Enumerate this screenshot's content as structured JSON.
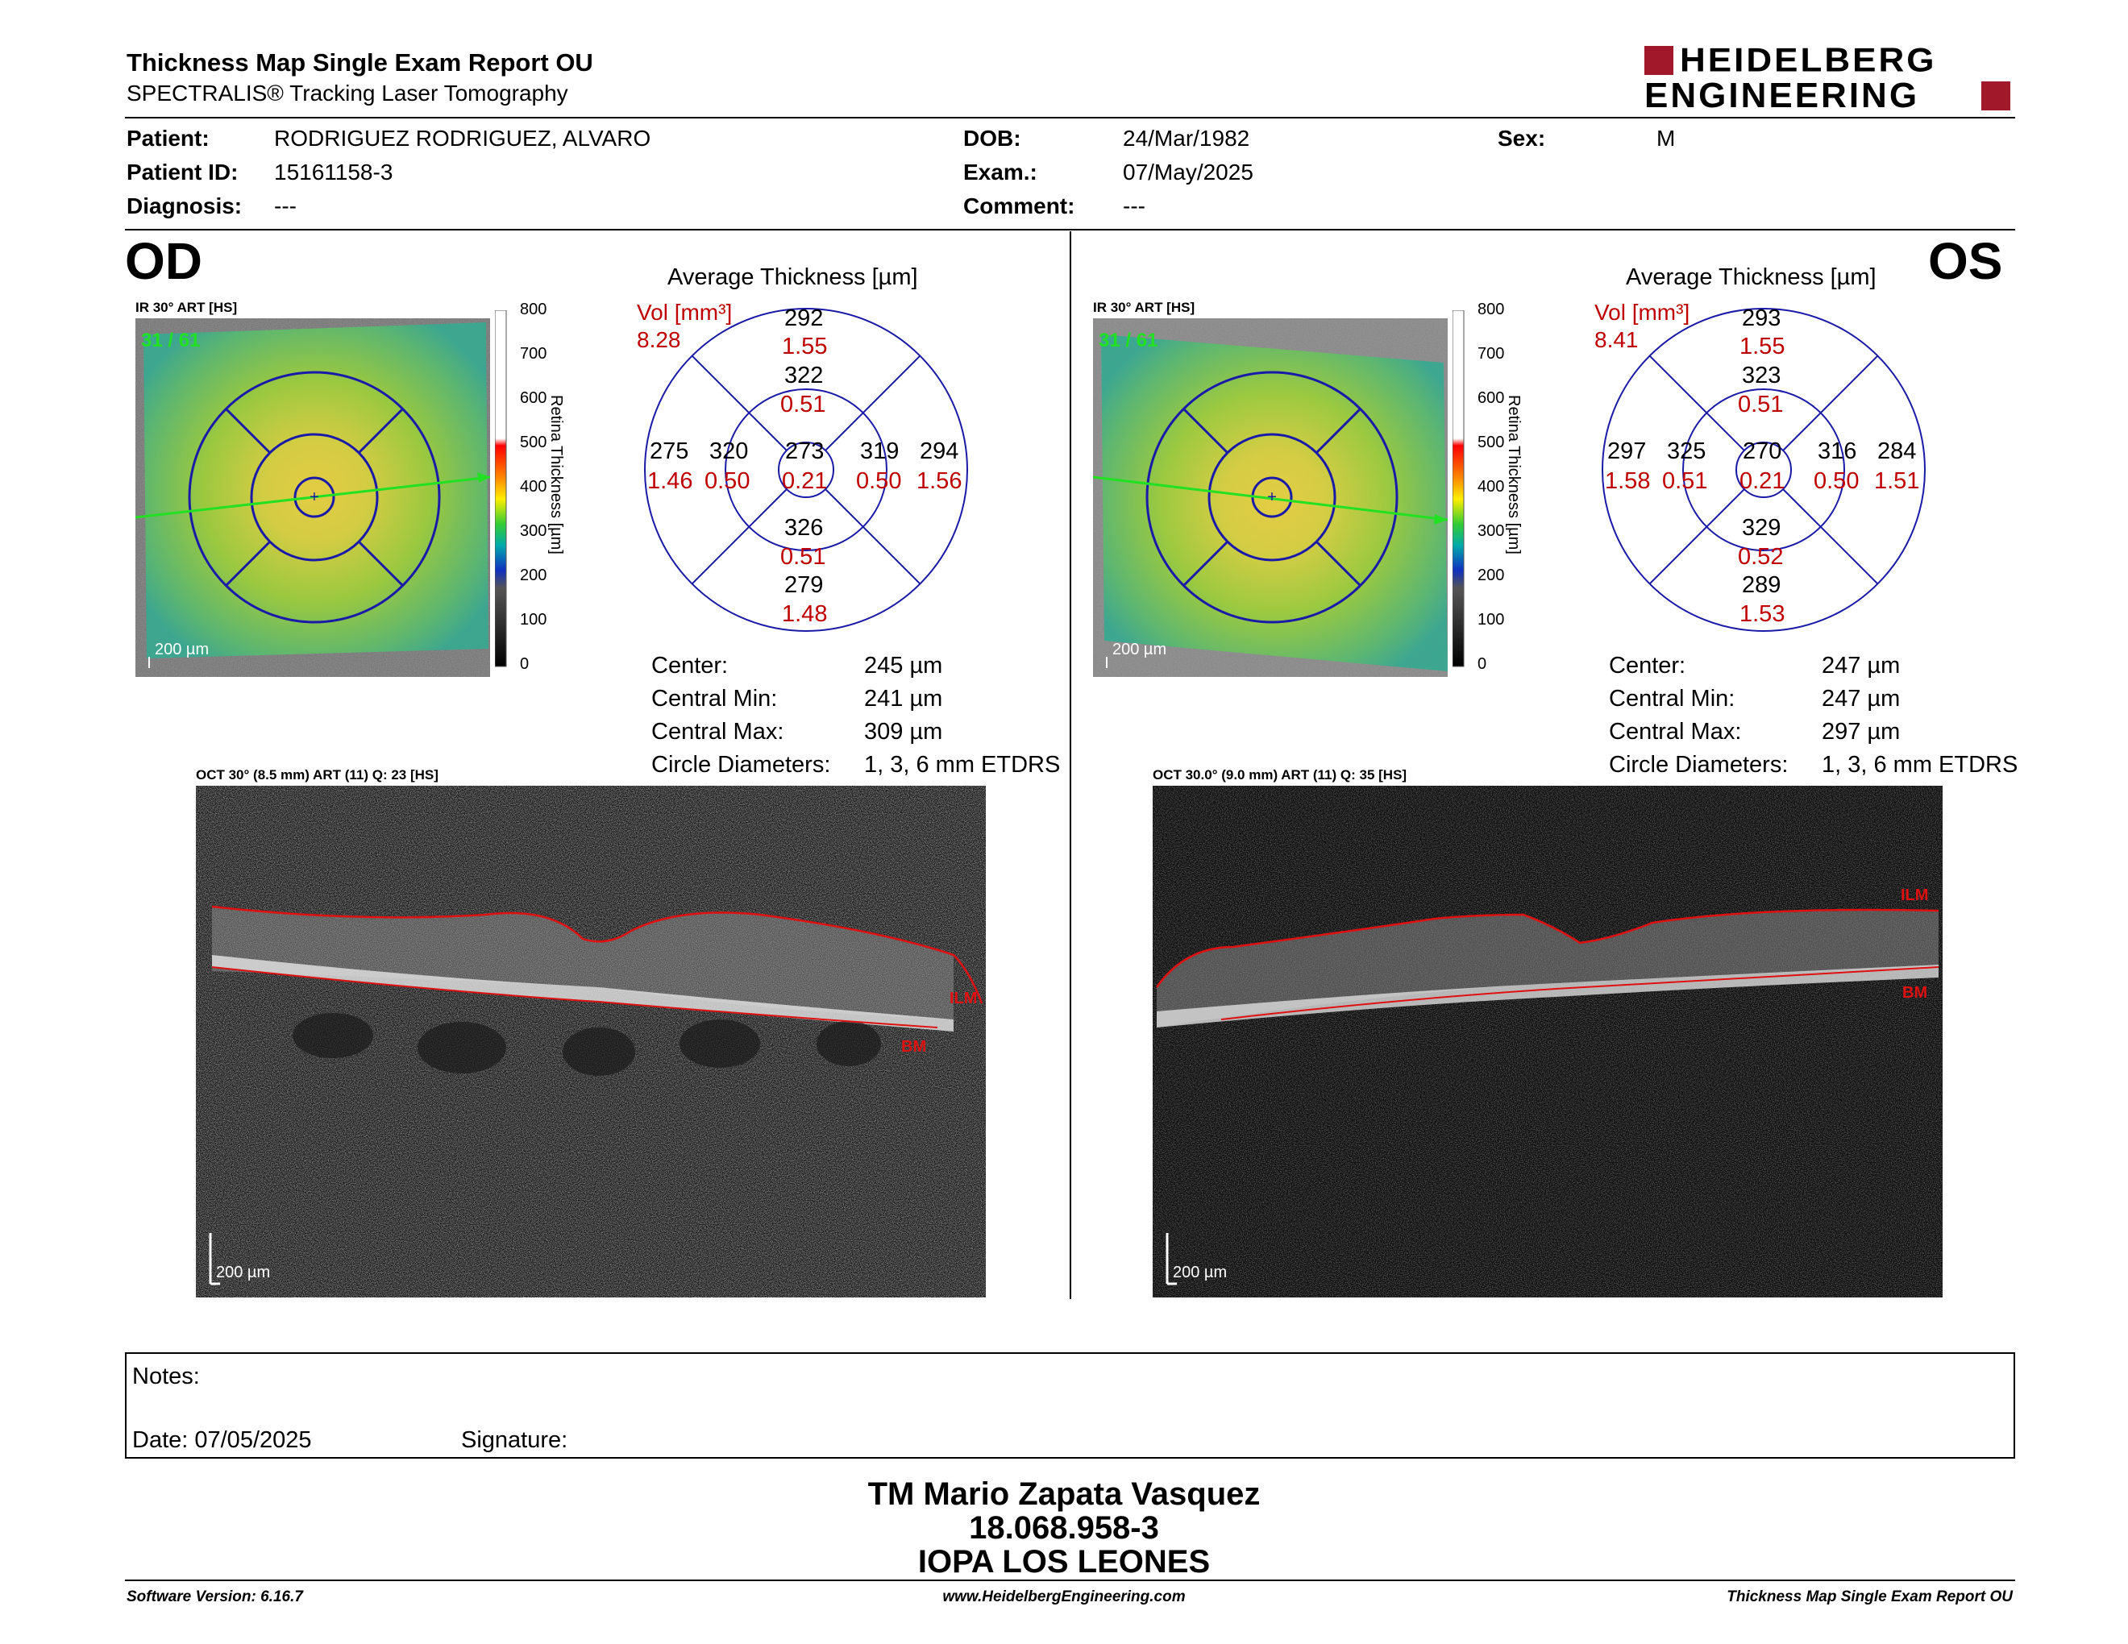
{
  "report": {
    "title": "Thickness Map Single Exam Report OU",
    "subtitle": "SPECTRALIS® Tracking Laser Tomography",
    "logo_line1": "HEIDELBERG",
    "logo_line2": "ENGINEERING"
  },
  "patient": {
    "patient_label": "Patient:",
    "patient_value": "RODRIGUEZ RODRIGUEZ, ALVARO",
    "dob_label": "DOB:",
    "dob_value": "24/Mar/1982",
    "sex_label": "Sex:",
    "sex_value": "M",
    "id_label": "Patient ID:",
    "id_value": "15161158-3",
    "exam_label": "Exam.:",
    "exam_value": "07/May/2025",
    "diag_label": "Diagnosis:",
    "diag_value": "---",
    "comment_label": "Comment:",
    "comment_value": "---"
  },
  "colorbar": {
    "title": "Retina Thickness [µm]",
    "ticks": [
      "800",
      "700",
      "600",
      "500",
      "400",
      "300",
      "200",
      "100",
      "0"
    ]
  },
  "od": {
    "eye": "OD",
    "ir_label": "IR 30° ART [HS]",
    "frame": "31 / 61",
    "scale": "200 µm",
    "grid_title": "Average Thickness [µm]",
    "vol_label": "Vol [mm³]",
    "vol_total": "8.28",
    "sectors": {
      "center": {
        "t": "273",
        "v": "0.21"
      },
      "inner_sup": {
        "t": "322",
        "v": "0.51"
      },
      "inner_inf": {
        "t": "326",
        "v": "0.51"
      },
      "inner_left": {
        "t": "320",
        "v": "0.50"
      },
      "inner_right": {
        "t": "319",
        "v": "0.50"
      },
      "outer_sup": {
        "t": "292",
        "v": "1.55"
      },
      "outer_inf": {
        "t": "279",
        "v": "1.48"
      },
      "outer_left": {
        "t": "275",
        "v": "1.46"
      },
      "outer_right": {
        "t": "294",
        "v": "1.56"
      }
    },
    "stats": [
      {
        "label": "Center:",
        "value": "245 µm"
      },
      {
        "label": "Central Min:",
        "value": "241 µm"
      },
      {
        "label": "Central Max:",
        "value": "309 µm"
      },
      {
        "label": "Circle Diameters:",
        "value": "1, 3, 6 mm ETDRS"
      }
    ],
    "oct_label": "OCT 30° (8.5 mm) ART (11) Q: 23 [HS]",
    "ilm": "ILM",
    "bm": "BM",
    "oct_scale": "200 µm"
  },
  "os": {
    "eye": "OS",
    "ir_label": "IR 30° ART [HS]",
    "frame": "31 / 61",
    "scale": "200 µm",
    "grid_title": "Average Thickness [µm]",
    "vol_label": "Vol [mm³]",
    "vol_total": "8.41",
    "sectors": {
      "center": {
        "t": "270",
        "v": "0.21"
      },
      "inner_sup": {
        "t": "323",
        "v": "0.51"
      },
      "inner_inf": {
        "t": "329",
        "v": "0.52"
      },
      "inner_left": {
        "t": "325",
        "v": "0.51"
      },
      "inner_right": {
        "t": "316",
        "v": "0.50"
      },
      "outer_sup": {
        "t": "293",
        "v": "1.55"
      },
      "outer_inf": {
        "t": "289",
        "v": "1.53"
      },
      "outer_left": {
        "t": "297",
        "v": "1.58"
      },
      "outer_right": {
        "t": "284",
        "v": "1.51"
      }
    },
    "stats": [
      {
        "label": "Center:",
        "value": "247 µm"
      },
      {
        "label": "Central Min:",
        "value": "247 µm"
      },
      {
        "label": "Central Max:",
        "value": "297 µm"
      },
      {
        "label": "Circle Diameters:",
        "value": "1, 3, 6 mm ETDRS"
      }
    ],
    "oct_label": "OCT 30.0° (9.0 mm) ART (11) Q: 35 [HS]",
    "ilm": "ILM",
    "bm": "BM",
    "oct_scale": "200 µm"
  },
  "notes": {
    "notes_label": "Notes:",
    "date_label": "Date: 07/05/2025",
    "signature_label": "Signature:"
  },
  "stamp": {
    "line1": "TM Mario Zapata Vasquez",
    "line2": "18.068.958-3",
    "line3": "IOPA LOS LEONES"
  },
  "footer": {
    "left": "Software Version: 6.16.7",
    "center": "www.HeidelbergEngineering.com",
    "right": "Thickness Map Single Exam Report OU"
  },
  "colors": {
    "grid_blue": "#1a1aa8",
    "value_red": "#d00000",
    "logo_red": "#a0182a",
    "segmentation_red": "#e01010"
  }
}
